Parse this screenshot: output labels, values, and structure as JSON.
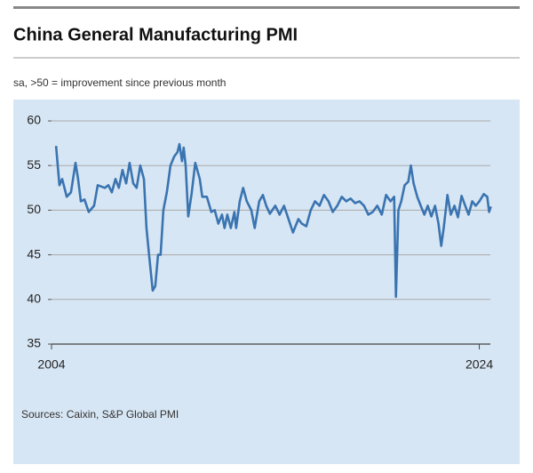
{
  "chart_data": {
    "type": "line",
    "title": "China General Manufacturing PMI",
    "subtitle": "sa, >50 = improvement since previous month",
    "source": "Sources: Caixin, S&P Global PMI",
    "xlim": [
      2004,
      2024.6
    ],
    "xticks": [
      2004,
      2024
    ],
    "ylim": [
      35,
      60
    ],
    "yticks": [
      35,
      40,
      45,
      50,
      55,
      60
    ],
    "grid": true,
    "series": [
      {
        "name": "PMI",
        "color": "#3a74b0",
        "x": [
          2004.21,
          2004.37,
          2004.5,
          2004.71,
          2004.91,
          2005.12,
          2005.24,
          2005.37,
          2005.54,
          2005.74,
          2005.99,
          2006.16,
          2006.49,
          2006.66,
          2006.82,
          2006.99,
          2007.15,
          2007.32,
          2007.49,
          2007.65,
          2007.82,
          2007.98,
          2008.15,
          2008.32,
          2008.44,
          2008.56,
          2008.73,
          2008.85,
          2008.98,
          2009.1,
          2009.23,
          2009.39,
          2009.56,
          2009.73,
          2009.89,
          2009.98,
          2010.1,
          2010.18,
          2010.27,
          2010.39,
          2010.56,
          2010.72,
          2010.93,
          2011.05,
          2011.26,
          2011.47,
          2011.63,
          2011.8,
          2011.97,
          2012.09,
          2012.22,
          2012.38,
          2012.55,
          2012.63,
          2012.8,
          2012.96,
          2013.13,
          2013.34,
          2013.5,
          2013.71,
          2013.88,
          2014.04,
          2014.21,
          2014.46,
          2014.66,
          2014.87,
          2015.08,
          2015.29,
          2015.54,
          2015.7,
          2015.91,
          2016.12,
          2016.32,
          2016.53,
          2016.74,
          2016.95,
          2017.15,
          2017.36,
          2017.57,
          2017.78,
          2017.98,
          2018.19,
          2018.4,
          2018.61,
          2018.81,
          2019.02,
          2019.23,
          2019.44,
          2019.64,
          2019.85,
          2020.02,
          2020.1,
          2020.22,
          2020.35,
          2020.51,
          2020.68,
          2020.8,
          2020.93,
          2021.1,
          2021.26,
          2021.43,
          2021.59,
          2021.76,
          2021.93,
          2022.09,
          2022.22,
          2022.34,
          2022.51,
          2022.67,
          2022.84,
          2023.0,
          2023.17,
          2023.34,
          2023.5,
          2023.67,
          2023.83,
          2024.0,
          2024.21,
          2024.37,
          2024.46,
          2024.54
        ],
        "values": [
          57.2,
          52.8,
          53.5,
          51.5,
          52,
          55.3,
          53.5,
          51,
          51.2,
          49.8,
          50.5,
          52.8,
          52.5,
          52.8,
          52,
          53.5,
          52.5,
          54.5,
          53,
          55.3,
          53,
          52.5,
          55,
          53.5,
          48,
          45,
          41,
          41.5,
          45,
          45,
          50,
          52,
          55,
          56,
          56.5,
          57.4,
          55.5,
          57,
          55,
          49.3,
          52,
          55.3,
          53.5,
          51.5,
          51.5,
          49.8,
          50,
          48.5,
          49.5,
          48,
          49.5,
          48,
          49.8,
          48,
          51,
          52.5,
          51,
          50,
          48,
          51,
          51.7,
          50.5,
          49.6,
          50.5,
          49.5,
          50.5,
          49,
          47.5,
          49,
          48.5,
          48.2,
          50,
          51,
          50.5,
          51.7,
          51,
          49.8,
          50.5,
          51.5,
          51,
          51.3,
          50.8,
          51,
          50.5,
          49.5,
          49.8,
          50.5,
          49.5,
          51.7,
          51,
          51.5,
          40.3,
          50,
          51,
          52.8,
          53.2,
          55,
          53,
          51.5,
          50.5,
          49.5,
          50.5,
          49.3,
          50.5,
          48.5,
          46,
          48.1,
          51.7,
          49.5,
          50.5,
          49.2,
          51.6,
          50.5,
          49.5,
          51,
          50.5,
          51,
          51.8,
          51.5,
          49.8,
          50.4
        ]
      }
    ]
  }
}
